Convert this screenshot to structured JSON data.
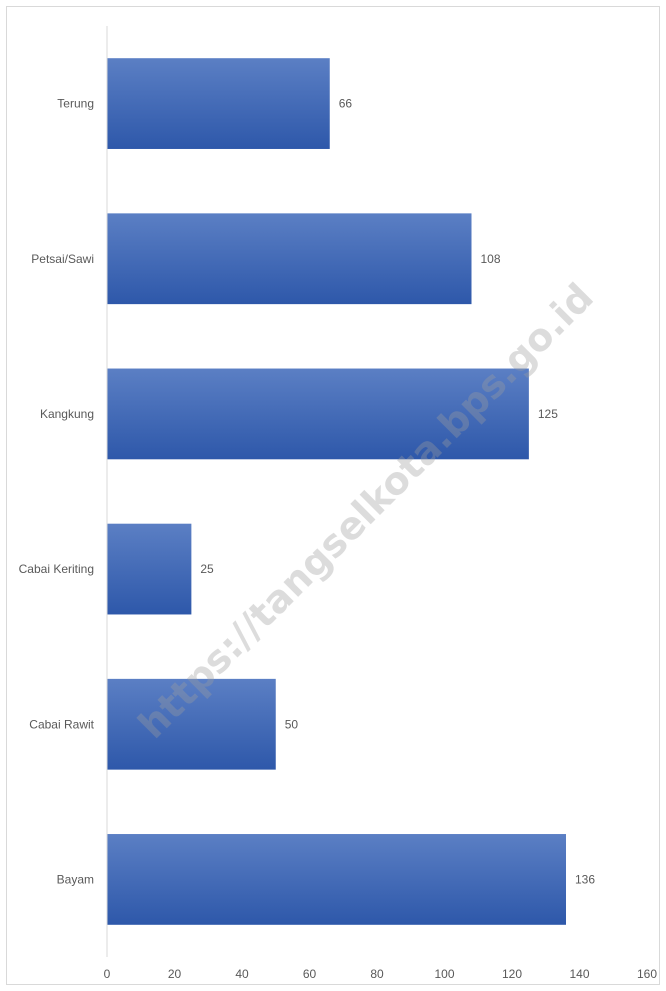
{
  "chart_data": {
    "type": "bar",
    "orientation": "horizontal",
    "categories": [
      "Bayam",
      "Cabai Rawit",
      "Cabai Keriting",
      "Kangkung",
      "Petsai/Sawi",
      "Terung"
    ],
    "values": [
      136,
      50,
      25,
      125,
      108,
      66
    ],
    "xlim": [
      0,
      160
    ],
    "xticks": [
      0,
      20,
      40,
      60,
      80,
      100,
      120,
      140,
      160
    ],
    "title": "",
    "xlabel": "",
    "ylabel": "",
    "grid": false,
    "legend": "none",
    "data_labels": true,
    "bar_color_top": "#5b7fc4",
    "bar_color_bottom": "#2e58aa"
  },
  "watermark": "https://tangselkota.bps.go.id"
}
